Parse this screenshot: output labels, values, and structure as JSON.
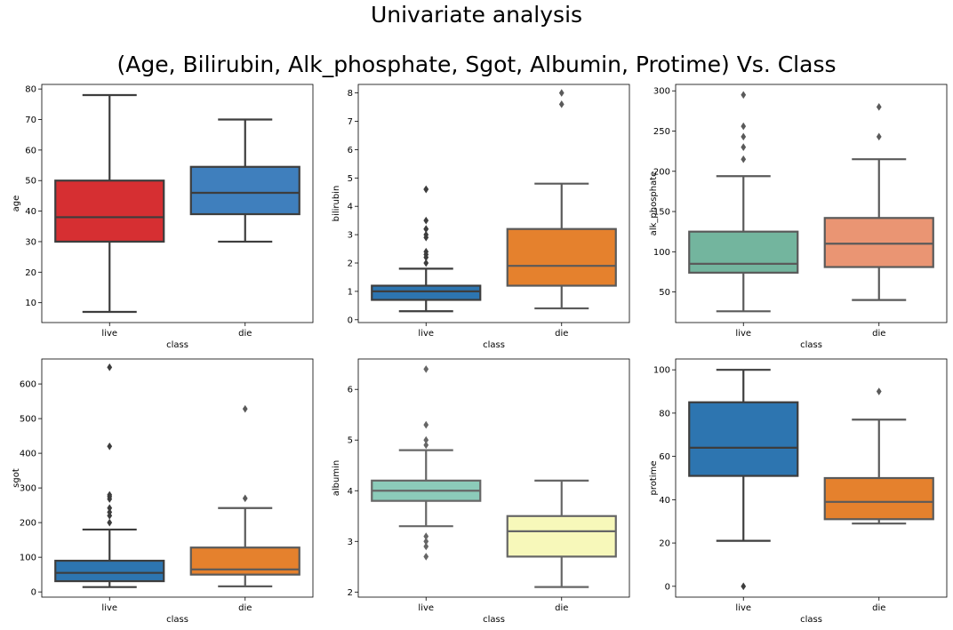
{
  "figure": {
    "title": "Univariate analysis",
    "subtitle": "(Age, Bilirubin, Alk_phosphate, Sgot, Albumin, Protime) Vs. Class"
  },
  "chart_data": [
    {
      "type": "box",
      "xlabel": "class",
      "ylabel": "age",
      "categories": [
        "live",
        "die"
      ],
      "ylim": [
        3.5,
        81.5
      ],
      "yticks": [
        10,
        20,
        30,
        40,
        50,
        60,
        70,
        80
      ],
      "colors": [
        "#d62f32",
        "#3f7fbd"
      ],
      "boxes": [
        {
          "category": "live",
          "whislo": 7,
          "q1": 30,
          "med": 38,
          "q3": 50,
          "whishi": 78,
          "fliers": []
        },
        {
          "category": "die",
          "whislo": 30,
          "q1": 39,
          "med": 46,
          "q3": 54.5,
          "whishi": 70,
          "fliers": []
        }
      ]
    },
    {
      "type": "box",
      "xlabel": "class",
      "ylabel": "bilirubin",
      "categories": [
        "live",
        "die"
      ],
      "ylim": [
        -0.1,
        8.3
      ],
      "yticks": [
        0,
        1,
        2,
        3,
        4,
        5,
        6,
        7,
        8
      ],
      "colors": [
        "#2d75b0",
        "#e5812d"
      ],
      "boxes": [
        {
          "category": "live",
          "whislo": 0.3,
          "q1": 0.7,
          "med": 1.0,
          "q3": 1.2,
          "whishi": 1.8,
          "fliers": [
            2.0,
            2.2,
            2.3,
            2.4,
            2.9,
            3.0,
            3.2,
            3.2,
            3.5,
            4.6,
            4.6
          ]
        },
        {
          "category": "die",
          "whislo": 0.4,
          "q1": 1.2,
          "med": 1.9,
          "q3": 3.2,
          "whishi": 4.8,
          "fliers": [
            7.6,
            8.0
          ]
        }
      ]
    },
    {
      "type": "box",
      "xlabel": "class",
      "ylabel": "alk_phosphate",
      "categories": [
        "live",
        "die"
      ],
      "ylim": [
        12,
        308
      ],
      "yticks": [
        50,
        100,
        150,
        200,
        250,
        300
      ],
      "colors": [
        "#73b59e",
        "#ea9573"
      ],
      "boxes": [
        {
          "category": "live",
          "whislo": 26,
          "q1": 74,
          "med": 85,
          "q3": 125,
          "whishi": 194,
          "fliers": [
            215,
            230,
            243,
            256,
            295
          ]
        },
        {
          "category": "die",
          "whislo": 40,
          "q1": 81,
          "med": 110,
          "q3": 142,
          "whishi": 215,
          "fliers": [
            243,
            280
          ]
        }
      ]
    },
    {
      "type": "box",
      "xlabel": "class",
      "ylabel": "sgot",
      "categories": [
        "live",
        "die"
      ],
      "ylim": [
        -15,
        672
      ],
      "yticks": [
        0,
        100,
        200,
        300,
        400,
        500,
        600
      ],
      "colors": [
        "#2d75b0",
        "#e5812d"
      ],
      "boxes": [
        {
          "category": "live",
          "whislo": 14,
          "q1": 31,
          "med": 55,
          "q3": 90,
          "whishi": 180,
          "fliers": [
            200,
            220,
            230,
            242,
            268,
            275,
            280,
            420,
            648
          ]
        },
        {
          "category": "die",
          "whislo": 16,
          "q1": 50,
          "med": 65,
          "q3": 128,
          "whishi": 242,
          "fliers": [
            270,
            528
          ]
        }
      ]
    },
    {
      "type": "box",
      "xlabel": "class",
      "ylabel": "albumin",
      "categories": [
        "live",
        "die"
      ],
      "ylim": [
        1.9,
        6.6
      ],
      "yticks": [
        2,
        3,
        4,
        5,
        6
      ],
      "colors": [
        "#8ccbba",
        "#f7f8ba"
      ],
      "boxes": [
        {
          "category": "live",
          "whislo": 3.3,
          "q1": 3.8,
          "med": 4.0,
          "q3": 4.2,
          "whishi": 4.8,
          "fliers": [
            2.7,
            2.9,
            3.0,
            3.1,
            4.9,
            5.0,
            5.3,
            6.4
          ]
        },
        {
          "category": "die",
          "whislo": 2.1,
          "q1": 2.7,
          "med": 3.2,
          "q3": 3.5,
          "whishi": 4.2,
          "fliers": []
        }
      ]
    },
    {
      "type": "box",
      "xlabel": "class",
      "ylabel": "protime",
      "categories": [
        "live",
        "die"
      ],
      "ylim": [
        -5,
        105
      ],
      "yticks": [
        0,
        20,
        40,
        60,
        80,
        100
      ],
      "colors": [
        "#2d75b0",
        "#e5812d"
      ],
      "boxes": [
        {
          "category": "live",
          "whislo": 21,
          "q1": 51,
          "med": 64,
          "q3": 85,
          "whishi": 100,
          "fliers": [
            0
          ]
        },
        {
          "category": "die",
          "whislo": 29,
          "q1": 31,
          "med": 39,
          "q3": 50,
          "whishi": 77,
          "fliers": [
            90
          ]
        }
      ]
    }
  ]
}
